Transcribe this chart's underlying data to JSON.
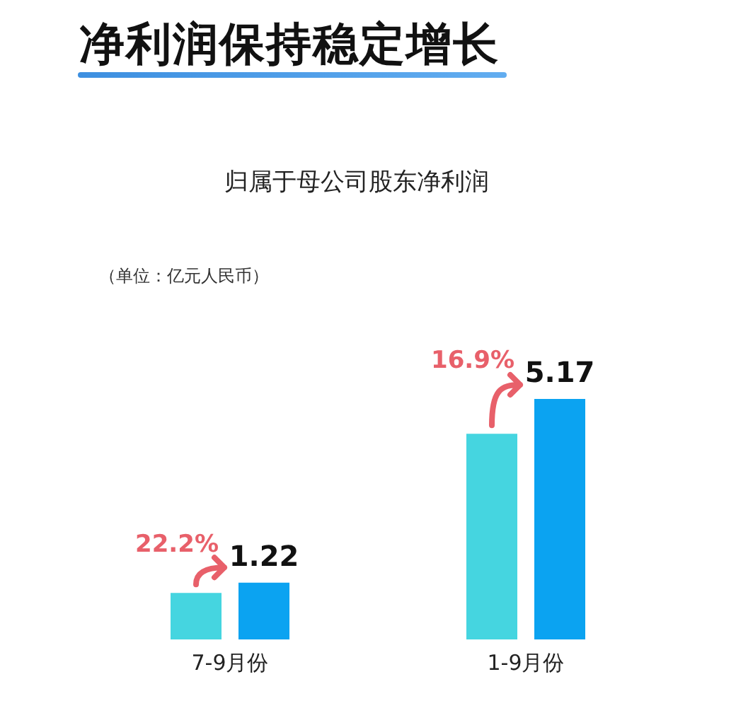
{
  "chart_data": {
    "type": "bar",
    "title": "净利润保持稳定增长",
    "subtitle": "归属于母公司股东净利润",
    "categories": [
      "7-9月份",
      "1-9月份"
    ],
    "series": [
      {
        "color": "#45d5e0",
        "values": [
          1.0,
          4.42
        ]
      },
      {
        "color": "#0ba3f1",
        "values": [
          1.22,
          5.17
        ],
        "value_labels": [
          "1.22",
          "5.17"
        ]
      }
    ],
    "tick_labels": "x",
    "annotations": [
      "（单位：亿元人民币）",
      "22.2%",
      "16.9%"
    ]
  }
}
